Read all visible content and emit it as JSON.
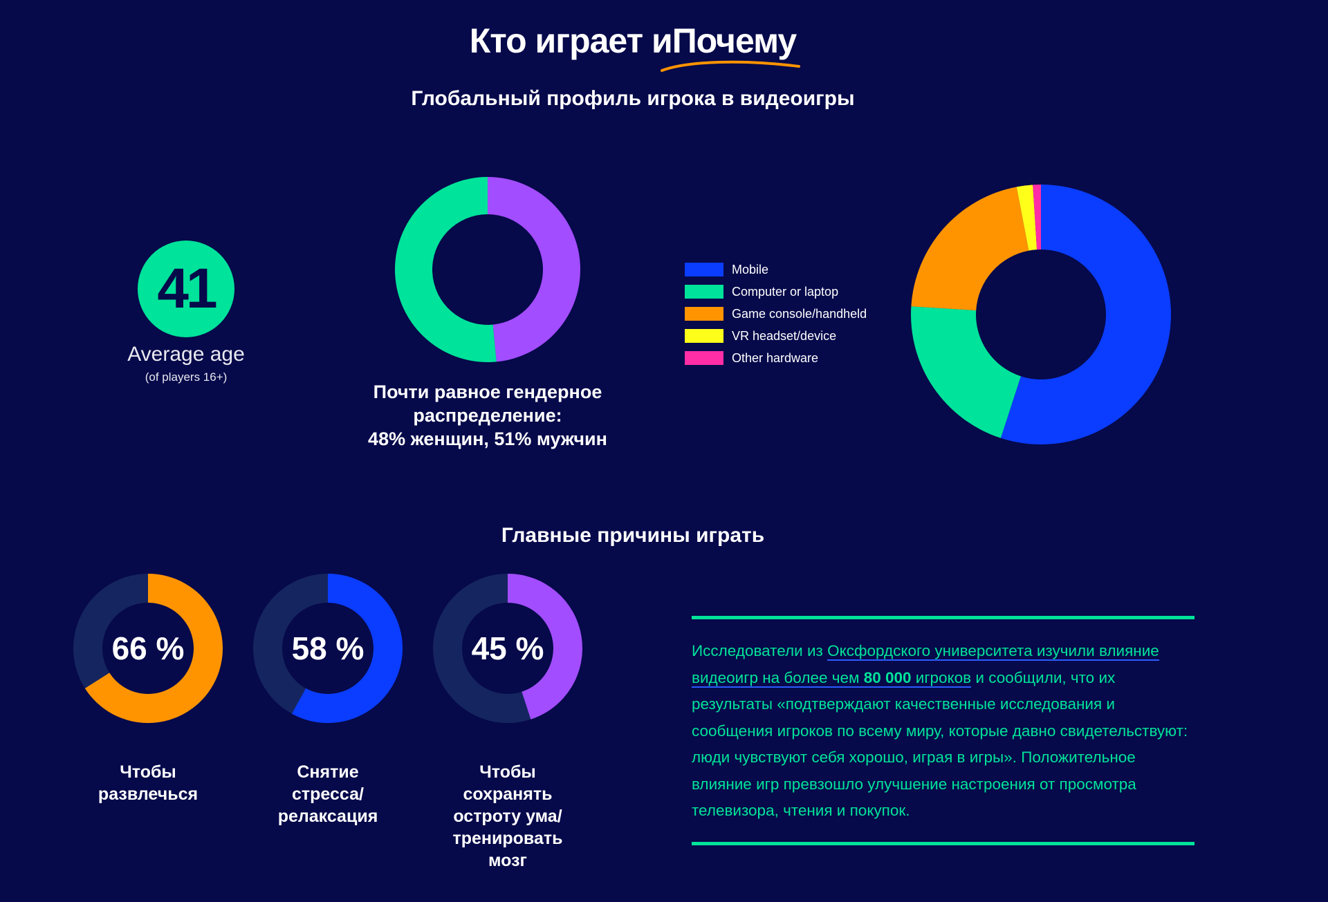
{
  "header": {
    "title": "Кто играет иПочему",
    "subtitle": "Глобальный профиль игрока в видеоигры"
  },
  "age": {
    "value": "41",
    "label": "Average age",
    "sublabel": "(of players 16+)"
  },
  "gender": {
    "caption_line1": "Почти равное гендерное",
    "caption_line2": "распределение:",
    "caption_line3": "48% женщин, 51% мужчин"
  },
  "reasons": {
    "title": "Главные причины играть",
    "items": [
      {
        "percent_label": "66 %",
        "line1": "Чтобы",
        "line2": "развлечься",
        "line3": "",
        "line4": "",
        "line5": ""
      },
      {
        "percent_label": "58 %",
        "line1": "Снятие",
        "line2": "стресса/",
        "line3": "релаксация",
        "line4": "",
        "line5": ""
      },
      {
        "percent_label": "45 %",
        "line1": "Чтобы",
        "line2": "сохранять",
        "line3": "остроту ума/",
        "line4": "тренировать",
        "line5": "мозг"
      }
    ]
  },
  "quote": {
    "part1": "Исследователи из ",
    "link1": "Оксфордского университета изучили влияние видеоигр на более чем ",
    "bold": "80 000",
    "link2": " игроков",
    "part2": " и сообщили, что их результаты «подтверждают качественные исследования и сообщения игроков по всему миру, которые давно свидетельствуют: люди чувствуют себя хорошо, играя в игры». Положительное влияние игр превзошло улучшение настроения от просмотра телевизора, чтения и покупок."
  },
  "colors": {
    "background": "#06094a",
    "green": "#00e39a",
    "purple": "#a24dff",
    "blue": "#0a3dff",
    "orange": "#ff9400",
    "yellow": "#ffff1a",
    "pink": "#ff2ea6",
    "track": "#15255f"
  },
  "chart_data": [
    {
      "type": "pie",
      "title": "Почти равное гендерное распределение: 48% женщин, 51% мужчин",
      "categories": [
        "женщин",
        "мужчин"
      ],
      "values": [
        48,
        51
      ],
      "colors": [
        "#a24dff",
        "#00e39a"
      ],
      "donut": true
    },
    {
      "type": "pie",
      "title": "",
      "categories": [
        "Mobile",
        "Computer or laptop",
        "Game console/handheld",
        "VR headset/device",
        "Other hardware"
      ],
      "values": [
        55,
        21,
        21,
        2,
        1
      ],
      "colors": [
        "#0a3dff",
        "#00e39a",
        "#ff9400",
        "#ffff1a",
        "#ff2ea6"
      ],
      "legend": "left",
      "donut": true
    },
    {
      "type": "pie",
      "title": "Главные причины играть",
      "categories": [
        "Чтобы развлечься",
        "Снятие стресса/релаксация",
        "Чтобы сохранять остроту ума/тренировать мозг"
      ],
      "values": [
        66,
        58,
        45
      ],
      "unit": "%",
      "colors": [
        "#ff9400",
        "#0a3dff",
        "#a24dff"
      ],
      "donut": true
    }
  ]
}
